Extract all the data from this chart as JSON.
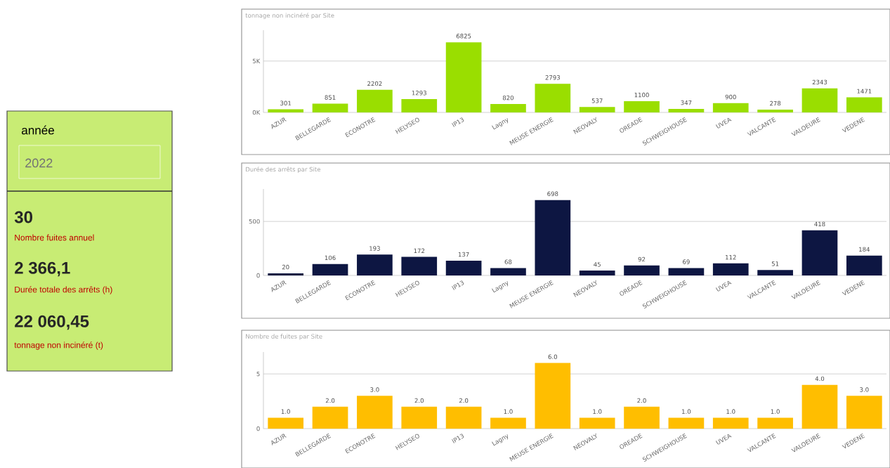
{
  "chart_data": [
    {
      "type": "other",
      "title": "année",
      "annotations": [
        "2022",
        "30",
        "Nombre fuites annuel",
        "2 366,1",
        "Durée totale des arrêts (h)",
        "22 060,45",
        "tonnage non incinéré (t)"
      ]
    },
    {
      "type": "bar",
      "title": "tonnage non incinéré par Site",
      "categories": [
        "AZUR",
        "BELLEGARDE",
        "ECONOTRE",
        "HELYSEO",
        "IP13",
        "Lagny",
        "MEUSE ENERGIE",
        "NEOVALY",
        "OREADE",
        "SCHWEIGHOUSE",
        "UVEA",
        "VALCANTE",
        "VALOEURE",
        "VEDENE"
      ],
      "values": [
        301,
        851,
        2202,
        1293,
        6825,
        820,
        2793,
        537,
        1100,
        347,
        900,
        278,
        2343,
        1471
      ],
      "color": "#9ade00",
      "ylim": [
        0,
        8000
      ],
      "yticks": [
        {
          "value": 0,
          "label": "0K"
        },
        {
          "value": 5000,
          "label": "5K"
        }
      ],
      "grid": "y",
      "data_labels": true
    },
    {
      "type": "bar",
      "title": "Durée des arrêts par Site",
      "categories": [
        "AZUR",
        "BELLEGARDE",
        "ECONOTRE",
        "HELYSEO",
        "IP13",
        "Lagny",
        "MEUSE ENERGIE",
        "NEOVALY",
        "OREADE",
        "SCHWEIGHOUSE",
        "UVEA",
        "VALCANTE",
        "VALOEURE",
        "VEDENE"
      ],
      "values": [
        20,
        106,
        193,
        172,
        137,
        68,
        698,
        45,
        92,
        69,
        112,
        51,
        418,
        184
      ],
      "color": "#0d1642",
      "ylim": [
        0,
        800
      ],
      "yticks": [
        0,
        500
      ],
      "grid": "y",
      "data_labels": true
    },
    {
      "type": "bar",
      "title": "Nombre de fuites par Site",
      "categories": [
        "AZUR",
        "BELLEGARDE",
        "ECONOTRE",
        "HELYSEO",
        "IP13",
        "Lagny",
        "MEUSE ENERGIE",
        "NEOVALY",
        "OREADE",
        "SCHWEIGHOUSE",
        "UVEA",
        "VALCANTE",
        "VALOEURE",
        "VEDENE"
      ],
      "values": [
        1,
        2,
        3,
        2,
        2,
        1,
        6,
        1,
        2,
        1,
        1,
        1,
        4,
        3
      ],
      "value_labels": [
        "1.0",
        "2.0",
        "3.0",
        "2.0",
        "2.0",
        "1.0",
        "6.0",
        "1.0",
        "2.0",
        "1.0",
        "1.0",
        "1.0",
        "4.0",
        "3.0"
      ],
      "color": "#ffbe00",
      "ylim": [
        0,
        7
      ],
      "yticks": [
        0,
        5
      ],
      "grid": "y"
    }
  ]
}
